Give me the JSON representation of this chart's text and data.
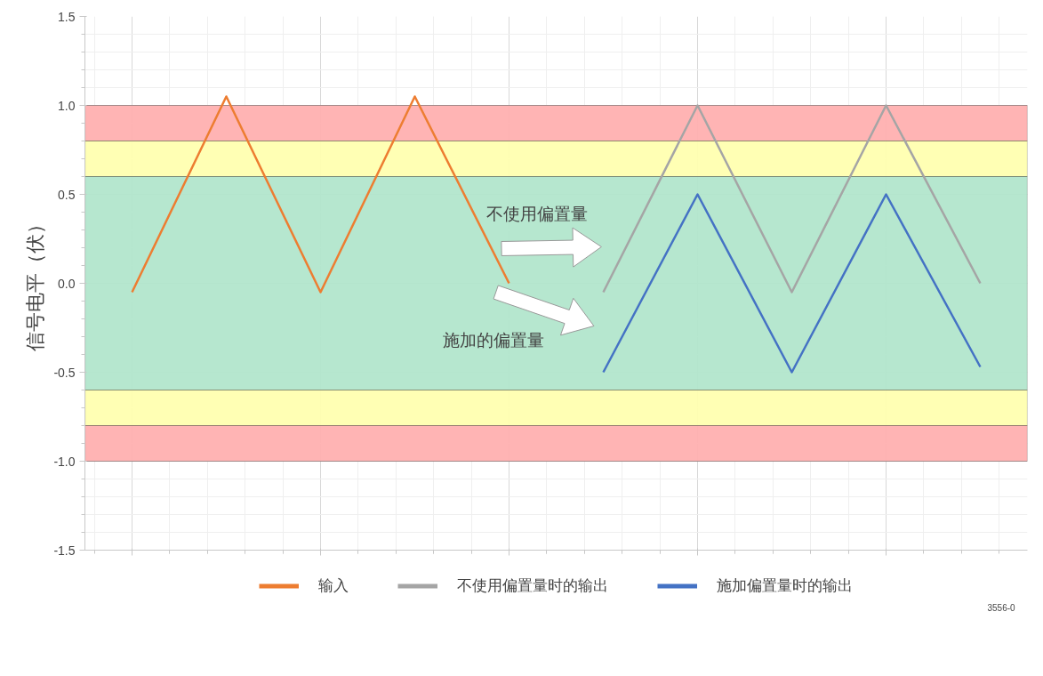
{
  "chart_data": {
    "type": "line",
    "ylabel": "信号电平（伏）",
    "categories": [
      null,
      null,
      null,
      null,
      null,
      null,
      null,
      null,
      null,
      null
    ],
    "ylim": [
      -1.5,
      1.5
    ],
    "yticks": [
      {
        "value": -1.5,
        "label": "-1.5"
      },
      {
        "value": -1,
        "label": "-1.0"
      },
      {
        "value": -0.5,
        "label": "-0.5"
      },
      {
        "value": 0,
        "label": "0.0"
      },
      {
        "value": 0.5,
        "label": "0.5"
      },
      {
        "value": 1,
        "label": "1.0"
      },
      {
        "value": 1.5,
        "label": "1.5"
      }
    ],
    "tick_labels": "y",
    "grid": true,
    "legend": "bottom",
    "line_style": "solid",
    "marker": "none",
    "bands": [
      {
        "axis": "y",
        "from": 0.8,
        "to": 1.0,
        "color": "#ffb0b0"
      },
      {
        "axis": "y",
        "from": 0.6,
        "to": 0.8,
        "color": "#ffffb0"
      },
      {
        "axis": "y",
        "from": -0.6,
        "to": 0.6,
        "color": "#b2e6cc"
      },
      {
        "axis": "y",
        "from": -0.8,
        "to": -0.6,
        "color": "#ffffb0"
      },
      {
        "axis": "y",
        "from": -1.0,
        "to": -0.8,
        "color": "#ffb0b0"
      }
    ],
    "series": [
      {
        "name": "输入",
        "color": "#ed7d31",
        "values": [
          -0.05,
          1.05,
          -0.05,
          1.05,
          0.0,
          null,
          null,
          null,
          null,
          null
        ]
      },
      {
        "name": "不使用偏置量时的输出",
        "color": "#a5a5a5",
        "values": [
          null,
          null,
          null,
          null,
          null,
          -0.05,
          1.0,
          -0.05,
          1.0,
          0.0
        ]
      },
      {
        "name": "施加偏置量时的输出",
        "color": "#4472c4",
        "values": [
          null,
          null,
          null,
          null,
          null,
          -0.5,
          0.5,
          -0.5,
          0.5,
          -0.47
        ]
      }
    ],
    "annotations": [
      "不使用偏置量",
      "施加的偏置量",
      "3556-0"
    ]
  }
}
